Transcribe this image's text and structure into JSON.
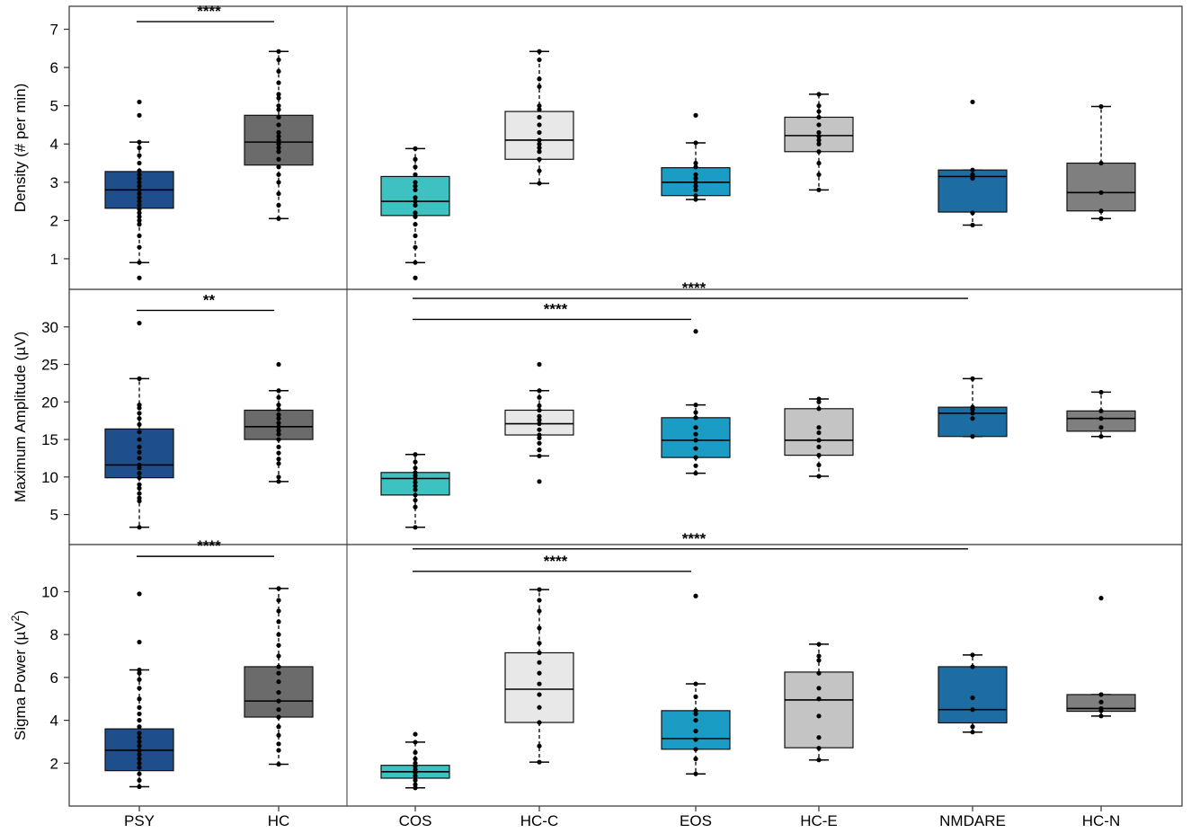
{
  "chart_data": {
    "type": "boxplot",
    "categories": [
      "PSY",
      "HC",
      "COS",
      "HC-C",
      "EOS",
      "HC-E",
      "NMDARE",
      "HC-N"
    ],
    "colors": {
      "PSY": "#1f4e8c",
      "HC": "#6b6b6b",
      "COS": "#3ec1c1",
      "HC-C": "#e8e8e8",
      "EOS": "#1a9cc4",
      "HC-E": "#c4c4c4",
      "NMDARE": "#1d6da3",
      "HC-N": "#7f7f7f"
    },
    "panels": [
      {
        "ylabel": "Density (# per min)",
        "ylim": [
          0.2,
          7.6
        ],
        "yticks": [
          1,
          2,
          3,
          4,
          5,
          6,
          7
        ],
        "boxes": [
          {
            "cat": "PSY",
            "q1": 2.32,
            "median": 2.8,
            "q3": 3.28,
            "wlo": 0.9,
            "whi": 4.05,
            "points": [
              0.5,
              0.9,
              1.3,
              1.6,
              1.9,
              2.0,
              2.1,
              2.2,
              2.3,
              2.4,
              2.5,
              2.6,
              2.7,
              2.8,
              2.9,
              3.0,
              3.1,
              3.2,
              3.3,
              3.5,
              3.7,
              3.9,
              4.05,
              4.75,
              5.1
            ]
          },
          {
            "cat": "HC",
            "q1": 3.45,
            "median": 4.05,
            "q3": 4.75,
            "wlo": 2.05,
            "whi": 6.42,
            "points": [
              2.05,
              2.4,
              2.7,
              3.0,
              3.2,
              3.4,
              3.6,
              3.8,
              3.9,
              4.0,
              4.1,
              4.2,
              4.3,
              4.5,
              4.7,
              4.9,
              5.0,
              5.2,
              5.3,
              5.6,
              5.9,
              6.2,
              6.42
            ]
          },
          {
            "cat": "COS",
            "q1": 2.13,
            "median": 2.5,
            "q3": 3.15,
            "wlo": 0.9,
            "whi": 3.88,
            "points": [
              0.5,
              0.9,
              1.3,
              1.6,
              1.9,
              2.1,
              2.2,
              2.4,
              2.5,
              2.6,
              2.8,
              2.9,
              3.0,
              3.2,
              3.4,
              3.6,
              3.88
            ]
          },
          {
            "cat": "HC-C",
            "q1": 3.6,
            "median": 4.1,
            "q3": 4.85,
            "wlo": 2.97,
            "whi": 6.42,
            "points": [
              2.97,
              3.3,
              3.6,
              3.8,
              3.9,
              4.0,
              4.1,
              4.3,
              4.5,
              4.7,
              4.9,
              5.0,
              5.5,
              5.7,
              6.2,
              6.42
            ]
          },
          {
            "cat": "EOS",
            "q1": 2.65,
            "median": 3.0,
            "q3": 3.38,
            "wlo": 2.55,
            "whi": 4.03,
            "points": [
              2.55,
              2.65,
              2.8,
              2.9,
              3.0,
              3.1,
              3.2,
              3.4,
              3.5,
              4.03,
              4.75
            ]
          },
          {
            "cat": "HC-E",
            "q1": 3.8,
            "median": 4.22,
            "q3": 4.7,
            "wlo": 2.8,
            "whi": 5.3,
            "points": [
              2.8,
              3.2,
              3.5,
              3.8,
              4.0,
              4.1,
              4.2,
              4.3,
              4.5,
              4.7,
              4.85,
              5.0,
              5.3
            ]
          },
          {
            "cat": "NMDARE",
            "q1": 2.22,
            "median": 3.15,
            "q3": 3.32,
            "wlo": 1.88,
            "whi": 3.32,
            "points": [
              1.88,
              2.2,
              3.1,
              3.2,
              3.32,
              5.1
            ]
          },
          {
            "cat": "HC-N",
            "q1": 2.25,
            "median": 2.73,
            "q3": 3.5,
            "wlo": 2.05,
            "whi": 4.98,
            "points": [
              2.05,
              2.25,
              2.73,
              3.5,
              4.98
            ]
          }
        ],
        "significance": [
          {
            "from": "PSY",
            "to": "HC",
            "label": "****",
            "y": 7.2
          }
        ]
      },
      {
        "ylabel": "Maximum Amplitude (µV)",
        "ylim": [
          1,
          35
        ],
        "yticks": [
          5,
          10,
          15,
          20,
          25,
          30
        ],
        "boxes": [
          {
            "cat": "PSY",
            "q1": 9.9,
            "median": 11.6,
            "q3": 16.4,
            "wlo": 3.3,
            "whi": 23.1,
            "points": [
              3.3,
              6.8,
              7.2,
              7.8,
              8.5,
              9.0,
              9.9,
              10.5,
              11.2,
              11.6,
              12.5,
              13.3,
              14.0,
              15.0,
              16.0,
              17.0,
              17.8,
              18.5,
              19.2,
              19.6,
              23.1,
              30.5
            ]
          },
          {
            "cat": "HC",
            "q1": 15.0,
            "median": 16.7,
            "q3": 18.9,
            "wlo": 9.4,
            "whi": 21.5,
            "points": [
              9.4,
              10.0,
              11.8,
              12.4,
              13.2,
              14.0,
              15.0,
              15.7,
              16.2,
              16.7,
              17.2,
              17.8,
              18.3,
              19.0,
              19.6,
              20.6,
              21.5,
              25.0
            ]
          },
          {
            "cat": "COS",
            "q1": 7.6,
            "median": 9.8,
            "q3": 10.6,
            "wlo": 3.3,
            "whi": 13.0,
            "points": [
              3.3,
              6.0,
              6.9,
              7.6,
              8.3,
              8.8,
              9.3,
              9.8,
              10.2,
              10.6,
              11.2,
              12.0,
              13.0
            ]
          },
          {
            "cat": "HC-C",
            "q1": 15.6,
            "median": 17.1,
            "q3": 18.9,
            "wlo": 12.8,
            "whi": 21.5,
            "points": [
              9.4,
              12.8,
              13.6,
              14.5,
              15.2,
              15.6,
              16.3,
              17.1,
              17.6,
              18.1,
              18.9,
              19.5,
              20.6,
              21.5,
              25.0
            ]
          },
          {
            "cat": "EOS",
            "q1": 12.6,
            "median": 14.9,
            "q3": 17.9,
            "wlo": 10.5,
            "whi": 19.6,
            "points": [
              10.5,
              11.5,
              12.6,
              13.8,
              14.9,
              15.7,
              16.6,
              17.9,
              18.6,
              19.6,
              29.4
            ]
          },
          {
            "cat": "HC-E",
            "q1": 12.9,
            "median": 14.9,
            "q3": 19.1,
            "wlo": 10.1,
            "whi": 20.4,
            "points": [
              10.1,
              11.6,
              12.9,
              14.0,
              14.9,
              15.9,
              16.6,
              19.1,
              20.0,
              20.4
            ]
          },
          {
            "cat": "NMDARE",
            "q1": 15.4,
            "median": 18.5,
            "q3": 19.3,
            "wlo": 15.4,
            "whi": 23.1,
            "points": [
              15.4,
              17.8,
              18.5,
              19.0,
              19.3,
              23.1
            ]
          },
          {
            "cat": "HC-N",
            "q1": 16.1,
            "median": 17.8,
            "q3": 18.8,
            "wlo": 15.4,
            "whi": 21.3,
            "points": [
              15.4,
              16.6,
              17.8,
              18.8,
              21.3
            ]
          }
        ],
        "significance": [
          {
            "from": "PSY",
            "to": "HC",
            "label": "**",
            "y": 32.2
          },
          {
            "from": "COS",
            "to": "NMDARE",
            "label": "****",
            "y": 33.8
          },
          {
            "from": "COS",
            "to": "EOS",
            "label": "****",
            "y": 31.0
          }
        ]
      },
      {
        "ylabel": "Sigma Power (µV²)",
        "ylim": [
          0,
          12.2
        ],
        "yticks": [
          2,
          4,
          6,
          8,
          10
        ],
        "boxes": [
          {
            "cat": "PSY",
            "q1": 1.65,
            "median": 2.6,
            "q3": 3.6,
            "wlo": 0.9,
            "whi": 6.35,
            "points": [
              0.9,
              1.2,
              1.5,
              1.8,
              2.0,
              2.2,
              2.4,
              2.6,
              2.8,
              3.0,
              3.2,
              3.4,
              3.7,
              4.0,
              4.3,
              4.6,
              5.0,
              5.5,
              5.9,
              6.2,
              6.35,
              7.65,
              9.9
            ]
          },
          {
            "cat": "HC",
            "q1": 4.15,
            "median": 4.9,
            "q3": 6.5,
            "wlo": 1.95,
            "whi": 10.15,
            "points": [
              1.95,
              2.6,
              2.9,
              3.3,
              3.7,
              4.15,
              4.5,
              4.9,
              5.3,
              5.8,
              6.2,
              6.5,
              7.0,
              7.5,
              8.0,
              8.6,
              9.1,
              9.6,
              10.15
            ]
          },
          {
            "cat": "COS",
            "q1": 1.3,
            "median": 1.6,
            "q3": 1.9,
            "wlo": 0.85,
            "whi": 2.98,
            "points": [
              0.85,
              1.0,
              1.2,
              1.4,
              1.55,
              1.7,
              1.85,
              2.0,
              2.2,
              2.5,
              2.98,
              3.35
            ]
          },
          {
            "cat": "HC-C",
            "q1": 3.9,
            "median": 5.45,
            "q3": 7.15,
            "wlo": 2.05,
            "whi": 10.1,
            "points": [
              2.05,
              2.8,
              3.9,
              4.6,
              5.2,
              5.7,
              6.2,
              6.7,
              7.15,
              7.6,
              8.3,
              9.1,
              9.6,
              10.1
            ]
          },
          {
            "cat": "EOS",
            "q1": 2.65,
            "median": 3.15,
            "q3": 4.45,
            "wlo": 1.5,
            "whi": 5.7,
            "points": [
              1.5,
              2.2,
              2.65,
              3.1,
              3.5,
              4.0,
              4.3,
              4.45,
              5.1,
              5.7,
              9.8
            ]
          },
          {
            "cat": "HC-E",
            "q1": 2.72,
            "median": 4.95,
            "q3": 6.25,
            "wlo": 2.15,
            "whi": 7.55,
            "points": [
              2.15,
              2.7,
              3.2,
              4.2,
              5.0,
              5.5,
              6.2,
              6.8,
              7.0,
              7.55
            ]
          },
          {
            "cat": "NMDARE",
            "q1": 3.88,
            "median": 4.5,
            "q3": 6.5,
            "wlo": 3.45,
            "whi": 7.05,
            "points": [
              3.45,
              3.7,
              4.5,
              5.05,
              6.5,
              7.05
            ]
          },
          {
            "cat": "HC-N",
            "q1": 4.42,
            "median": 4.55,
            "q3": 5.2,
            "wlo": 4.2,
            "whi": 5.2,
            "points": [
              4.2,
              4.45,
              4.55,
              4.85,
              5.2,
              9.7
            ]
          }
        ],
        "significance": [
          {
            "from": "PSY",
            "to": "HC",
            "label": "****",
            "y": 11.65
          },
          {
            "from": "COS",
            "to": "NMDARE",
            "label": "****",
            "y": 12.0
          },
          {
            "from": "COS",
            "to": "EOS",
            "label": "****",
            "y": 10.95
          }
        ]
      }
    ]
  }
}
